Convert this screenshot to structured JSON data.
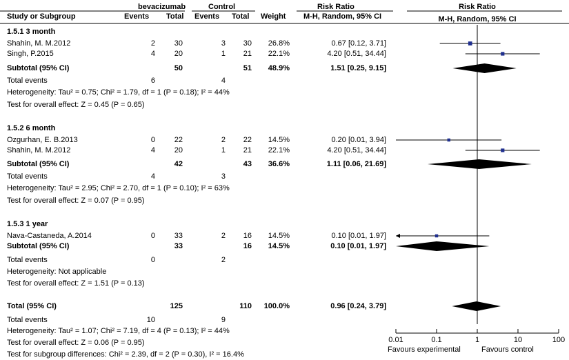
{
  "header": {
    "group1": "bevacizumab",
    "group2": "Control",
    "rr_title": "Risk Ratio",
    "plot_title": "Risk Ratio",
    "study_col": "Study or Subgroup",
    "events1": "Events",
    "total1": "Total",
    "events2": "Events",
    "total2": "Total",
    "weight": "Weight",
    "rr_method": "M-H, Random, 95% CI",
    "plot_method": "M-H, Random, 95% CI"
  },
  "subgroups": [
    {
      "title": "1.5.1 3 month",
      "studies": [
        {
          "name": "Shahin, M. M.2012",
          "e1": "2",
          "t1": "30",
          "e2": "3",
          "t2": "30",
          "weight": "26.8%",
          "ci": "0.67 [0.12, 3.71]"
        },
        {
          "name": "Singh, P.2015",
          "e1": "4",
          "t1": "20",
          "e2": "1",
          "t2": "21",
          "weight": "22.1%",
          "ci": "4.20 [0.51, 34.44]"
        }
      ],
      "subtotal": {
        "label": "Subtotal (95% CI)",
        "t1": "50",
        "t2": "51",
        "weight": "48.9%",
        "ci": "1.51 [0.25, 9.15]"
      },
      "total_events": {
        "label": "Total events",
        "e1": "6",
        "e2": "4"
      },
      "heterogeneity": "Heterogeneity: Tau² = 0.75; Chi² = 1.79, df = 1 (P = 0.18); I² = 44%",
      "overall": "Test for overall effect: Z = 0.45 (P = 0.65)"
    },
    {
      "title": "1.5.2 6 month",
      "studies": [
        {
          "name": "Ozgurhan, E. B.2013",
          "e1": "0",
          "t1": "22",
          "e2": "2",
          "t2": "22",
          "weight": "14.5%",
          "ci": "0.20 [0.01, 3.94]"
        },
        {
          "name": "Shahin, M. M.2012",
          "e1": "4",
          "t1": "20",
          "e2": "1",
          "t2": "21",
          "weight": "22.1%",
          "ci": "4.20 [0.51, 34.44]"
        }
      ],
      "subtotal": {
        "label": "Subtotal (95% CI)",
        "t1": "42",
        "t2": "43",
        "weight": "36.6%",
        "ci": "1.11 [0.06, 21.69]"
      },
      "total_events": {
        "label": "Total events",
        "e1": "4",
        "e2": "3"
      },
      "heterogeneity": "Heterogeneity: Tau² = 2.95; Chi² = 2.70, df = 1 (P = 0.10); I² = 63%",
      "overall": "Test for overall effect: Z = 0.07 (P = 0.95)"
    },
    {
      "title": "1.5.3 1 year",
      "studies": [
        {
          "name": "Nava-Castaneda, A.2014",
          "e1": "0",
          "t1": "33",
          "e2": "2",
          "t2": "16",
          "weight": "14.5%",
          "ci": "0.10 [0.01, 1.97]"
        }
      ],
      "subtotal": {
        "label": "Subtotal (95% CI)",
        "t1": "33",
        "t2": "16",
        "weight": "14.5%",
        "ci": "0.10 [0.01, 1.97]"
      },
      "total_events": {
        "label": "Total events",
        "e1": "0",
        "e2": "2"
      },
      "heterogeneity": "Heterogeneity: Not applicable",
      "overall": "Test for overall effect: Z = 1.51 (P = 0.13)"
    }
  ],
  "total": {
    "label": "Total (95% CI)",
    "t1": "125",
    "t2": "110",
    "weight": "100.0%",
    "ci": "0.96 [0.24, 3.79]"
  },
  "total_events": {
    "label": "Total events",
    "e1": "10",
    "e2": "9"
  },
  "total_heterogeneity": "Heterogeneity: Tau² = 1.07; Chi² = 7.19, df = 4 (P = 0.13); I² = 44%",
  "total_overall": "Test for overall effect: Z = 0.06 (P = 0.95)",
  "subgroup_differences": "Test for subgroup differences: Chi² = 2.39, df = 2 (P = 0.30), I² = 16.4%",
  "axis": {
    "ticks": [
      "0.01",
      "0.1",
      "1",
      "10",
      "100"
    ],
    "favours_left": "Favours experimental",
    "favours_right": "Favours control"
  },
  "chart_data": {
    "type": "scatter",
    "x_scale": "log",
    "xlim": [
      0.01,
      100
    ],
    "x_ticks": [
      0.01,
      0.1,
      1,
      10,
      100
    ],
    "null_line": 1,
    "studies": [
      {
        "subgroup": "1.5.1 3 month",
        "name": "Shahin, M. M.2012",
        "rr": 0.67,
        "lo": 0.12,
        "hi": 3.71,
        "weight": 26.8
      },
      {
        "subgroup": "1.5.1 3 month",
        "name": "Singh, P.2015",
        "rr": 4.2,
        "lo": 0.51,
        "hi": 34.44,
        "weight": 22.1
      },
      {
        "subgroup": "1.5.2 6 month",
        "name": "Ozgurhan, E. B.2013",
        "rr": 0.2,
        "lo": 0.01,
        "hi": 3.94,
        "weight": 14.5
      },
      {
        "subgroup": "1.5.2 6 month",
        "name": "Shahin, M. M.2012",
        "rr": 4.2,
        "lo": 0.51,
        "hi": 34.44,
        "weight": 22.1
      },
      {
        "subgroup": "1.5.3 1 year",
        "name": "Nava-Castaneda, A.2014",
        "rr": 0.1,
        "lo": 0.01,
        "hi": 1.97,
        "weight": 14.5
      }
    ],
    "diamonds": [
      {
        "name": "Subtotal 1.5.1 3 month",
        "rr": 1.51,
        "lo": 0.25,
        "hi": 9.15
      },
      {
        "name": "Subtotal 1.5.2 6 month",
        "rr": 1.11,
        "lo": 0.06,
        "hi": 21.69
      },
      {
        "name": "Subtotal 1.5.3 1 year",
        "rr": 0.1,
        "lo": 0.01,
        "hi": 1.97
      },
      {
        "name": "Total",
        "rr": 0.96,
        "lo": 0.24,
        "hi": 3.79
      }
    ],
    "colors": {
      "square": "#1f2f8f",
      "diamond": "#000000"
    }
  }
}
